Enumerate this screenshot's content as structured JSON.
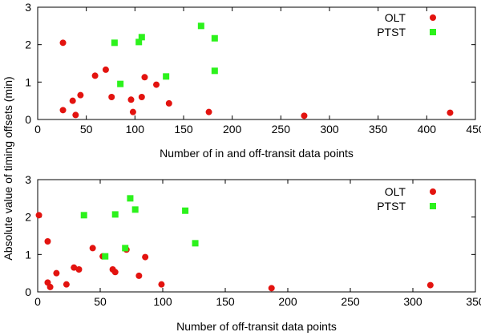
{
  "shared_ylabel": "Absolute value of timing offsets (min)",
  "chart_data": [
    {
      "type": "scatter",
      "title": "",
      "xlabel": "Number of in and off-transit data points",
      "ylabel": "Absolute value of timing offsets (min)",
      "xlim": [
        0,
        450
      ],
      "ylim": [
        0,
        3
      ],
      "xticks": [
        0,
        50,
        100,
        150,
        200,
        250,
        300,
        350,
        400,
        450
      ],
      "yticks": [
        0,
        1,
        2,
        3
      ],
      "grid": false,
      "legend_position": "top-right",
      "series": [
        {
          "name": "OLT",
          "marker": "circle",
          "color": "#e3130f",
          "points": [
            [
              26,
              2.05
            ],
            [
              26,
              0.25
            ],
            [
              36,
              0.5
            ],
            [
              39,
              0.12
            ],
            [
              44,
              0.65
            ],
            [
              59,
              1.17
            ],
            [
              70,
              1.33
            ],
            [
              76,
              0.6
            ],
            [
              96,
              0.53
            ],
            [
              98,
              0.2
            ],
            [
              107,
              0.6
            ],
            [
              110,
              1.13
            ],
            [
              122,
              0.93
            ],
            [
              135,
              0.43
            ],
            [
              176,
              0.2
            ],
            [
              274,
              0.1
            ],
            [
              424,
              0.18
            ]
          ]
        },
        {
          "name": "PTST",
          "marker": "square",
          "color": "#2cf21c",
          "points": [
            [
              79,
              2.05
            ],
            [
              85,
              0.95
            ],
            [
              104,
              2.07
            ],
            [
              107,
              2.2
            ],
            [
              132,
              1.15
            ],
            [
              168,
              2.5
            ],
            [
              182,
              2.17
            ],
            [
              182,
              1.3
            ]
          ]
        }
      ]
    },
    {
      "type": "scatter",
      "title": "",
      "xlabel": "Number of off-transit data points",
      "ylabel": "Absolute value of timing offsets (min)",
      "xlim": [
        0,
        350
      ],
      "ylim": [
        0,
        3
      ],
      "xticks": [
        0,
        50,
        100,
        150,
        200,
        250,
        300,
        350
      ],
      "yticks": [
        0,
        1,
        2,
        3
      ],
      "grid": false,
      "legend_position": "top-right",
      "series": [
        {
          "name": "OLT",
          "marker": "circle",
          "color": "#e3130f",
          "points": [
            [
              1,
              2.05
            ],
            [
              8,
              1.35
            ],
            [
              8,
              0.25
            ],
            [
              10,
              0.13
            ],
            [
              15,
              0.5
            ],
            [
              23,
              0.2
            ],
            [
              29,
              0.65
            ],
            [
              33,
              0.6
            ],
            [
              44,
              1.17
            ],
            [
              52,
              0.95
            ],
            [
              60,
              0.6
            ],
            [
              62,
              0.53
            ],
            [
              71,
              1.13
            ],
            [
              81,
              0.43
            ],
            [
              86,
              0.93
            ],
            [
              99,
              0.2
            ],
            [
              187,
              0.1
            ],
            [
              314,
              0.18
            ]
          ]
        },
        {
          "name": "PTST",
          "marker": "square",
          "color": "#2cf21c",
          "points": [
            [
              37,
              2.05
            ],
            [
              54,
              0.95
            ],
            [
              62,
              2.07
            ],
            [
              70,
              1.17
            ],
            [
              74,
              2.5
            ],
            [
              78,
              2.2
            ],
            [
              118,
              2.17
            ],
            [
              126,
              1.3
            ]
          ]
        }
      ]
    }
  ]
}
